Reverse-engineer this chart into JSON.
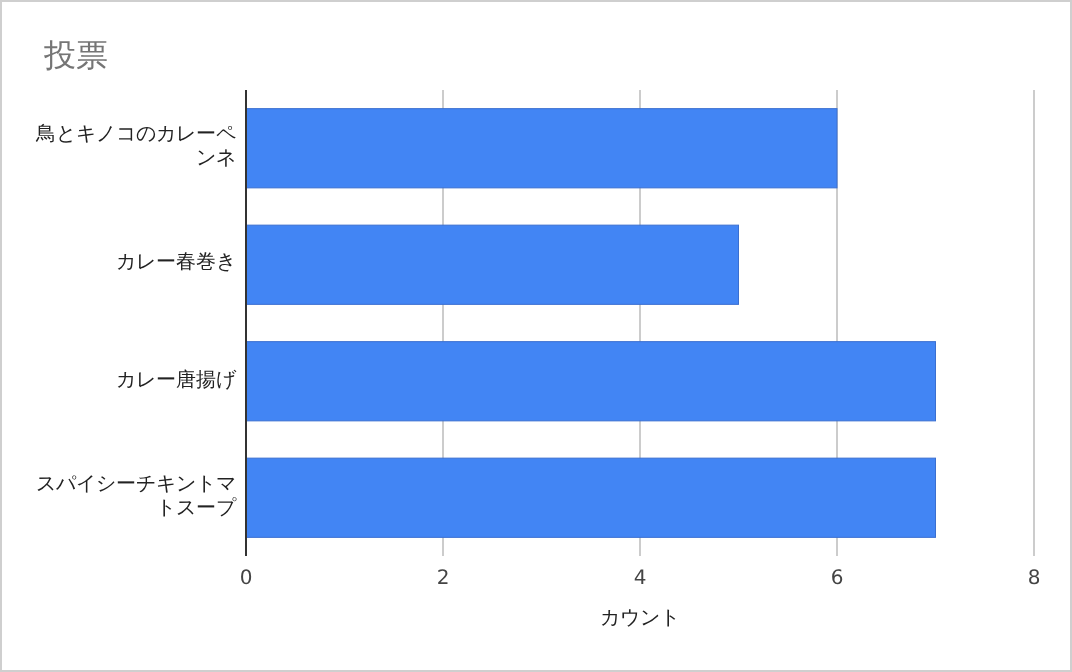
{
  "chart_data": {
    "type": "bar",
    "orientation": "horizontal",
    "title": "投票",
    "xlabel": "カウント",
    "categories": [
      "鳥とキノコのカレーペンネ",
      "カレー春巻き",
      "カレー唐揚げ",
      "スパイシーチキントマトスープ"
    ],
    "values": [
      6,
      5,
      7,
      7
    ],
    "color": "#4285f4",
    "xlim": [
      0,
      8
    ],
    "xticks": [
      0,
      2,
      4,
      6,
      8
    ],
    "grid": "x"
  }
}
